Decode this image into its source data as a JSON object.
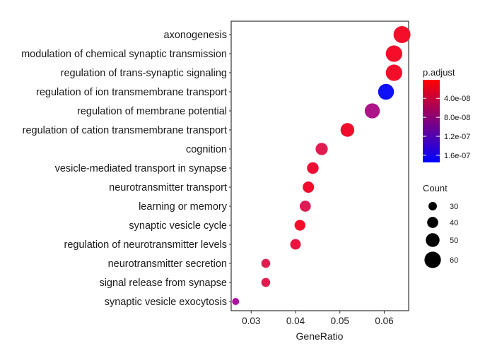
{
  "chart_data": {
    "type": "scatter",
    "title": "",
    "xlabel": "GeneRatio",
    "ylabel": "",
    "xlim": [
      0.0255,
      0.0655
    ],
    "x_ticks": [
      0.03,
      0.04,
      0.05,
      0.06
    ],
    "x_tick_labels": [
      "0.03",
      "0.04",
      "0.05",
      "0.06"
    ],
    "grid": true,
    "categories": [
      "axonogenesis",
      "modulation of chemical synaptic transmission",
      "regulation of trans-synaptic signaling",
      "regulation of ion transmembrane transport",
      "regulation of membrane potential",
      "regulation of cation transmembrane transport",
      "cognition",
      "vesicle-mediated transport in synapse",
      "neurotransmitter transport",
      "learning or memory",
      "synaptic vesicle cycle",
      "regulation of neurotransmitter levels",
      "neurotransmitter secretion",
      "signal release from synapse",
      "synaptic vesicle exocytosis"
    ],
    "points": [
      {
        "term": "axonogenesis",
        "x": 0.064,
        "count": 62,
        "p_adjust": 1e-08,
        "color": "#f50e2a"
      },
      {
        "term": "modulation of chemical synaptic transmission",
        "x": 0.0622,
        "count": 60,
        "p_adjust": 1e-08,
        "color": "#f50e2a"
      },
      {
        "term": "regulation of trans-synaptic signaling",
        "x": 0.0622,
        "count": 60,
        "p_adjust": 1e-08,
        "color": "#f50e2a"
      },
      {
        "term": "regulation of ion transmembrane transport",
        "x": 0.0604,
        "count": 58,
        "p_adjust": 1.75e-07,
        "color": "#1010f8"
      },
      {
        "term": "regulation of membrane potential",
        "x": 0.0573,
        "count": 55,
        "p_adjust": 1e-07,
        "color": "#ad1488"
      },
      {
        "term": "regulation of cation transmembrane transport",
        "x": 0.0517,
        "count": 50,
        "p_adjust": 1.2e-08,
        "color": "#f20c2c"
      },
      {
        "term": "cognition",
        "x": 0.0459,
        "count": 44,
        "p_adjust": 3e-08,
        "color": "#de1c50"
      },
      {
        "term": "vesicle-mediated transport in synapse",
        "x": 0.0439,
        "count": 42,
        "p_adjust": 1.5e-08,
        "color": "#ef0c33"
      },
      {
        "term": "neurotransmitter transport",
        "x": 0.0429,
        "count": 41,
        "p_adjust": 1.2e-08,
        "color": "#f20c2c"
      },
      {
        "term": "learning or memory",
        "x": 0.0422,
        "count": 40,
        "p_adjust": 3.2e-08,
        "color": "#dd1c55"
      },
      {
        "term": "synaptic vesicle cycle",
        "x": 0.041,
        "count": 39,
        "p_adjust": 1e-08,
        "color": "#f50e2a"
      },
      {
        "term": "regulation of neurotransmitter levels",
        "x": 0.04,
        "count": 38,
        "p_adjust": 2e-08,
        "color": "#ea1440"
      },
      {
        "term": "neurotransmitter secretion",
        "x": 0.0333,
        "count": 32,
        "p_adjust": 3e-08,
        "color": "#de1c50"
      },
      {
        "term": "signal release from synapse",
        "x": 0.0333,
        "count": 32,
        "p_adjust": 3e-08,
        "color": "#de1c50"
      },
      {
        "term": "synaptic vesicle exocytosis",
        "x": 0.0265,
        "count": 25,
        "p_adjust": 1.05e-07,
        "color": "#a914a0"
      }
    ],
    "color_legend": {
      "title": "p.adjust",
      "range": [
        1e-09,
        1.75e-07
      ],
      "ticks": [
        4e-08,
        8e-08,
        1.2e-07,
        1.6e-07
      ],
      "tick_labels": [
        "4.0e-08",
        "8.0e-08",
        "1.2e-07",
        "1.6e-07"
      ],
      "low_color": "#ff0000",
      "high_color": "#0000ff"
    },
    "size_legend": {
      "title": "Count",
      "values": [
        30,
        40,
        50,
        60
      ],
      "labels": [
        "30",
        "40",
        "50",
        "60"
      ],
      "size_range_count": [
        25,
        62
      ]
    },
    "legend_position": "right"
  }
}
